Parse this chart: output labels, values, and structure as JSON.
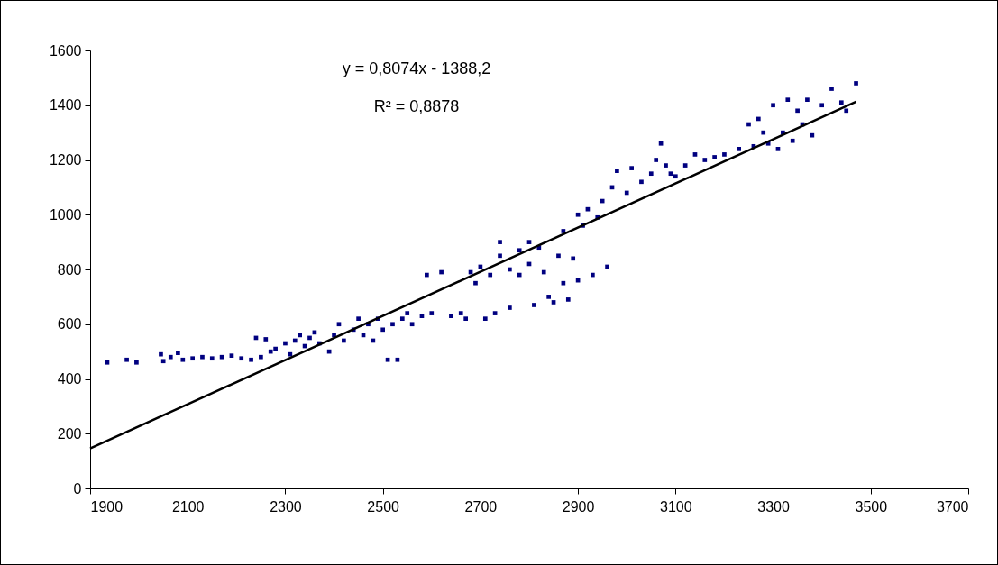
{
  "chart_data": {
    "type": "scatter",
    "grid": false,
    "xlim": [
      1900,
      3700
    ],
    "xticks": [
      1900,
      2100,
      2300,
      2500,
      2700,
      2900,
      3100,
      3300,
      3500,
      3700
    ],
    "ylim": [
      0,
      1600
    ],
    "yticks": [
      0,
      200,
      400,
      600,
      800,
      1000,
      1200,
      1400,
      1600
    ],
    "annotations": [
      "y = 0,8074x - 1388,2",
      "R² = 0,8878"
    ],
    "series": [
      {
        "marker": "square",
        "color": "#000080",
        "x": [
          1935,
          1975,
          1995,
          2045,
          2050,
          2065,
          2080,
          2090,
          2110,
          2130,
          2150,
          2170,
          2190,
          2210,
          2230,
          2240,
          2250,
          2260,
          2270,
          2280,
          2300,
          2310,
          2320,
          2330,
          2340,
          2350,
          2360,
          2370,
          2390,
          2400,
          2410,
          2420,
          2440,
          2450,
          2460,
          2470,
          2480,
          2490,
          2500,
          2510,
          2520,
          2530,
          2540,
          2550,
          2560,
          2580,
          2590,
          2600,
          2620,
          2640,
          2660,
          2670,
          2680,
          2690,
          2700,
          2710,
          2720,
          2730,
          2740,
          2740,
          2760,
          2760,
          2780,
          2780,
          2800,
          2800,
          2810,
          2820,
          2830,
          2840,
          2850,
          2860,
          2870,
          2870,
          2880,
          2890,
          2900,
          2900,
          2910,
          2920,
          2930,
          2940,
          2950,
          2960,
          2970,
          2980,
          3000,
          3010,
          3030,
          3050,
          3060,
          3070,
          3080,
          3090,
          3100,
          3120,
          3140,
          3160,
          3180,
          3200,
          3230,
          3250,
          3260,
          3270,
          3280,
          3290,
          3300,
          3310,
          3320,
          3330,
          3340,
          3350,
          3360,
          3370,
          3380,
          3400,
          3420,
          3440,
          3450,
          3470
        ],
        "values": [
          460,
          470,
          460,
          490,
          465,
          480,
          495,
          470,
          475,
          480,
          475,
          480,
          485,
          475,
          470,
          550,
          480,
          545,
          500,
          510,
          530,
          490,
          540,
          560,
          520,
          550,
          570,
          530,
          500,
          560,
          600,
          540,
          580,
          620,
          560,
          600,
          540,
          620,
          580,
          470,
          600,
          470,
          620,
          640,
          600,
          630,
          780,
          640,
          790,
          630,
          640,
          620,
          790,
          750,
          810,
          620,
          780,
          640,
          850,
          900,
          800,
          660,
          870,
          780,
          900,
          820,
          670,
          880,
          790,
          700,
          680,
          850,
          750,
          940,
          690,
          840,
          1000,
          760,
          960,
          1020,
          780,
          990,
          1050,
          810,
          1100,
          1160,
          1080,
          1170,
          1120,
          1150,
          1200,
          1260,
          1180,
          1150,
          1140,
          1180,
          1220,
          1200,
          1210,
          1220,
          1240,
          1330,
          1250,
          1350,
          1300,
          1260,
          1400,
          1240,
          1300,
          1420,
          1270,
          1380,
          1330,
          1420,
          1290,
          1400,
          1460,
          1410,
          1380,
          1480
        ]
      },
      {
        "type": "line",
        "color": "#000000",
        "x": [
          1900,
          3470
        ],
        "values": [
          146,
          1413
        ]
      }
    ]
  }
}
